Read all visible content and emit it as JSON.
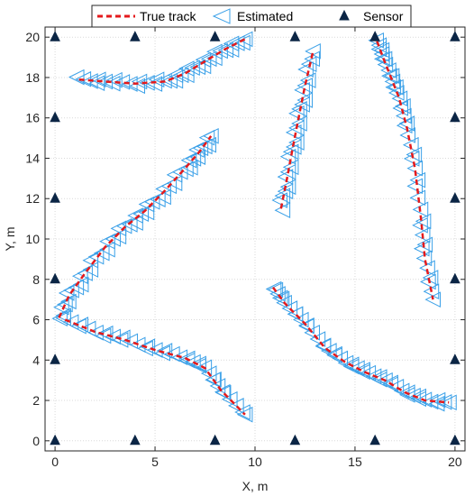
{
  "chart_data": {
    "type": "scatter",
    "xlabel": "X, m",
    "ylabel": "Y, m",
    "xlim": [
      -0.5,
      20.5
    ],
    "ylim": [
      -0.5,
      20.5
    ],
    "xticks": [
      0,
      5,
      10,
      15,
      20
    ],
    "yticks": [
      0,
      2,
      4,
      6,
      8,
      10,
      12,
      14,
      16,
      18,
      20
    ],
    "xtick_labels": [
      "0",
      "5",
      "10",
      "15",
      "20"
    ],
    "ytick_labels": [
      "0",
      "2",
      "4",
      "6",
      "8",
      "10",
      "12",
      "14",
      "16",
      "18",
      "20"
    ],
    "grid": true,
    "legend": {
      "position": "top",
      "entries": [
        {
          "label": "True track",
          "style": "dashed-line",
          "color": "#e41a1c"
        },
        {
          "label": "Estimated",
          "style": "left-triangle",
          "color": "#3aa0e8"
        },
        {
          "label": "Sensor",
          "style": "filled-triangle",
          "color": "#0b2545"
        }
      ]
    },
    "series": [
      {
        "name": "Sensor",
        "marker": "triangle-filled",
        "color": "#0b2545",
        "points": [
          [
            0,
            20
          ],
          [
            4,
            20
          ],
          [
            8,
            20
          ],
          [
            12,
            20
          ],
          [
            16,
            20
          ],
          [
            20,
            20
          ],
          [
            0,
            16
          ],
          [
            20,
            16
          ],
          [
            0,
            12
          ],
          [
            20,
            12
          ],
          [
            0,
            8
          ],
          [
            20,
            8
          ],
          [
            0,
            4
          ],
          [
            20,
            4
          ],
          [
            0,
            0
          ],
          [
            4,
            0
          ],
          [
            8,
            0
          ],
          [
            12,
            0
          ],
          [
            16,
            0
          ],
          [
            20,
            0
          ]
        ]
      },
      {
        "name": "True track",
        "style": "dashed",
        "color": "#e41a1c",
        "tracks": [
          [
            [
              1.2,
              17.9
            ],
            [
              2.5,
              17.8
            ],
            [
              4.0,
              17.7
            ],
            [
              5.5,
              17.8
            ],
            [
              6.5,
              18.2
            ],
            [
              7.5,
              18.8
            ],
            [
              8.5,
              19.4
            ],
            [
              9.5,
              19.9
            ]
          ],
          [
            [
              0.2,
              6.1
            ],
            [
              0.7,
              7.2
            ],
            [
              1.5,
              8.3
            ],
            [
              2.5,
              9.6
            ],
            [
              3.5,
              10.6
            ],
            [
              4.5,
              11.4
            ],
            [
              5.5,
              12.4
            ],
            [
              6.5,
              13.5
            ],
            [
              7.2,
              14.3
            ],
            [
              7.8,
              15.1
            ]
          ],
          [
            [
              0.5,
              6.0
            ],
            [
              2.0,
              5.4
            ],
            [
              3.5,
              5.0
            ],
            [
              5.0,
              4.5
            ],
            [
              6.5,
              4.1
            ],
            [
              7.5,
              3.6
            ],
            [
              8.3,
              2.5
            ],
            [
              9.5,
              1.3
            ]
          ],
          [
            [
              11.3,
              11.5
            ],
            [
              11.6,
              13.0
            ],
            [
              11.9,
              14.6
            ],
            [
              12.2,
              16.1
            ],
            [
              12.5,
              17.6
            ],
            [
              12.9,
              19.3
            ]
          ],
          [
            [
              16.1,
              19.8
            ],
            [
              16.4,
              19.0
            ],
            [
              16.8,
              18.0
            ],
            [
              17.2,
              17.0
            ],
            [
              17.6,
              15.5
            ],
            [
              18.0,
              13.5
            ],
            [
              18.3,
              11.0
            ],
            [
              18.5,
              9.0
            ],
            [
              18.9,
              7.0
            ]
          ],
          [
            [
              10.9,
              7.6
            ],
            [
              11.5,
              6.8
            ],
            [
              12.5,
              5.8
            ],
            [
              13.5,
              4.6
            ],
            [
              14.5,
              3.9
            ],
            [
              15.5,
              3.4
            ],
            [
              16.5,
              3.0
            ],
            [
              17.5,
              2.4
            ],
            [
              18.5,
              2.0
            ],
            [
              19.7,
              1.9
            ]
          ]
        ]
      },
      {
        "name": "Estimated",
        "marker": "left-triangle-open",
        "color": "#3aa0e8",
        "count_per_segment": 2
      }
    ]
  }
}
